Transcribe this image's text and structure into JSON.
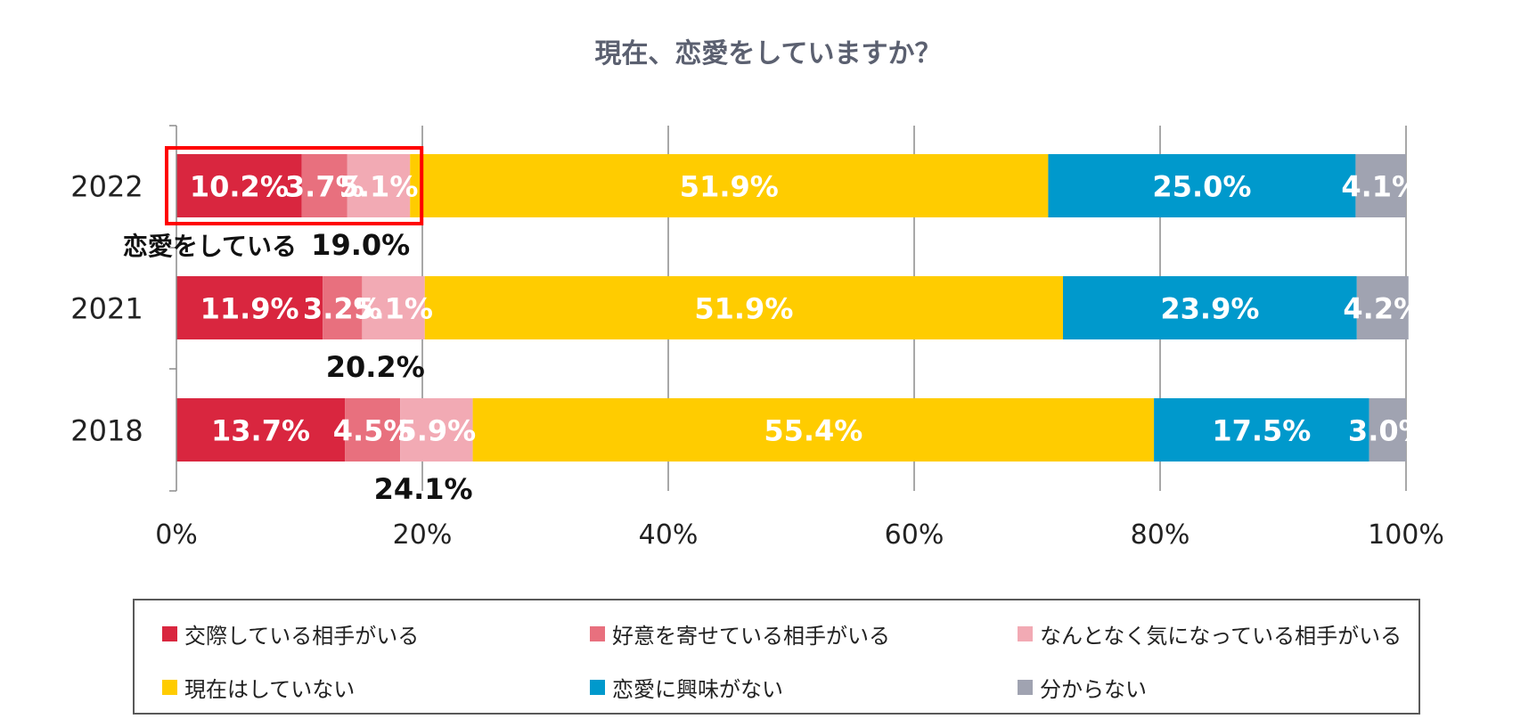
{
  "chart_data": {
    "type": "bar",
    "orientation": "horizontal",
    "stacked": true,
    "title": "現在、恋愛をしていますか？",
    "categories": [
      "2022",
      "2021",
      "2018"
    ],
    "series": [
      {
        "name": "交際している相手がいる",
        "color": "#D9263F",
        "values": [
          10.2,
          11.9,
          13.7
        ],
        "labels": [
          "10.2%",
          "11.9%",
          "13.7%"
        ]
      },
      {
        "name": "好意を寄せている相手がいる",
        "color": "#E8707E",
        "values": [
          3.7,
          3.2,
          4.5
        ],
        "labels": [
          "3.7%",
          "3.2%",
          "4.5%"
        ]
      },
      {
        "name": "なんとなく気になっている相手がいる",
        "color": "#F2AAB4",
        "values": [
          5.1,
          5.1,
          5.9
        ],
        "labels": [
          "5.1%",
          "5.1%",
          "5.9%"
        ]
      },
      {
        "name": "現在はしていない",
        "color": "#FFCC00",
        "values": [
          51.9,
          51.9,
          55.4
        ],
        "labels": [
          "51.9%",
          "51.9%",
          "55.4%"
        ]
      },
      {
        "name": "恋愛に興味がない",
        "color": "#0099CC",
        "values": [
          25.0,
          23.9,
          17.5
        ],
        "labels": [
          "25.0%",
          "23.9%",
          "17.5%"
        ]
      },
      {
        "name": "分からない",
        "color": "#A0A3B1",
        "values": [
          4.1,
          4.2,
          3.0
        ],
        "labels": [
          "4.1%",
          "4.2%",
          "3.0%"
        ]
      }
    ],
    "x_ticks": [
      "0%",
      "20%",
      "40%",
      "60%",
      "80%",
      "100%"
    ],
    "xlim": [
      0,
      100
    ],
    "grid": true,
    "legend_position": "bottom",
    "subtotals": [
      "19.0%",
      "20.2%",
      "24.1%"
    ],
    "subtotal_caption": "恋愛をしている",
    "highlight_category": "2022",
    "highlight_color": "#FF0000",
    "title_color": "#5B6070",
    "value_label_color": "#FFFFFF",
    "subtotal_color": "#111111"
  }
}
